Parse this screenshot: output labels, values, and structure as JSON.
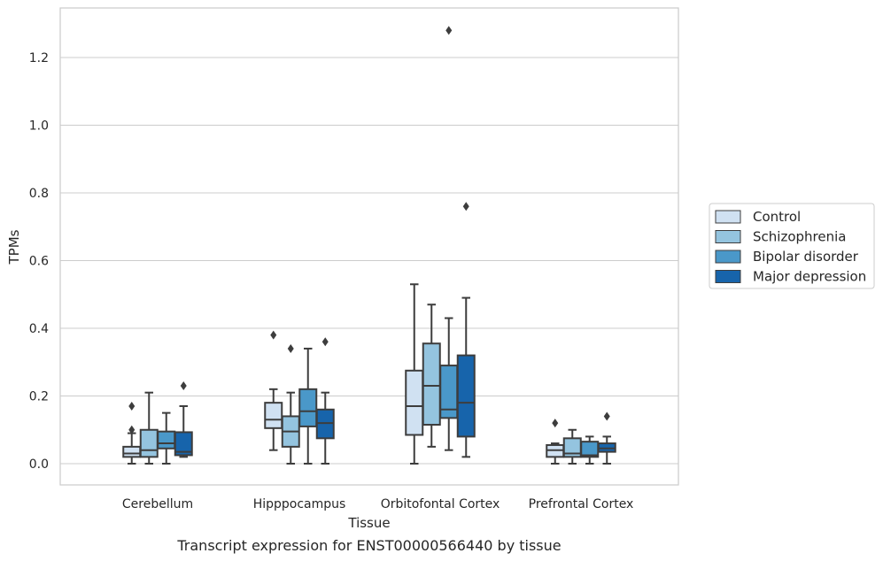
{
  "chart_data": {
    "type": "box",
    "caption": "Transcript expression for ENST00000566440 by tissue",
    "xlabel": "Tissue",
    "ylabel": "TPMs",
    "ylim": [
      -0.062,
      1.355
    ],
    "yticks": [
      0.0,
      0.2,
      0.4,
      0.6,
      0.8,
      1.0,
      1.2
    ],
    "ytick_labels": [
      "0.0",
      "0.2",
      "0.4",
      "0.6",
      "0.8",
      "1.0",
      "1.2"
    ],
    "grid": true,
    "legend_position": "right",
    "categories": [
      "Cerebellum",
      "Hipppocampus",
      "Orbitofontal Cortex",
      "Prefrontal Cortex"
    ],
    "series": [
      {
        "name": "Control",
        "color": "#d0e1f2",
        "boxes": [
          {
            "whislo": 0.0,
            "q1": 0.02,
            "med": 0.03,
            "q3": 0.05,
            "whishi": 0.09,
            "fliers": [
              0.17,
              0.1
            ]
          },
          {
            "whislo": 0.04,
            "q1": 0.105,
            "med": 0.13,
            "q3": 0.18,
            "whishi": 0.22,
            "fliers": [
              0.38
            ]
          },
          {
            "whislo": 0.0,
            "q1": 0.085,
            "med": 0.17,
            "q3": 0.275,
            "whishi": 0.53,
            "fliers": []
          },
          {
            "whislo": 0.0,
            "q1": 0.02,
            "med": 0.04,
            "q3": 0.055,
            "whishi": 0.06,
            "fliers": [
              0.12
            ]
          }
        ]
      },
      {
        "name": "Schizophrenia",
        "color": "#94c4df",
        "boxes": [
          {
            "whislo": 0.0,
            "q1": 0.02,
            "med": 0.04,
            "q3": 0.1,
            "whishi": 0.21,
            "fliers": []
          },
          {
            "whislo": 0.0,
            "q1": 0.05,
            "med": 0.095,
            "q3": 0.14,
            "whishi": 0.21,
            "fliers": [
              0.34
            ]
          },
          {
            "whislo": 0.05,
            "q1": 0.115,
            "med": 0.23,
            "q3": 0.355,
            "whishi": 0.47,
            "fliers": []
          },
          {
            "whislo": 0.0,
            "q1": 0.02,
            "med": 0.03,
            "q3": 0.075,
            "whishi": 0.1,
            "fliers": []
          }
        ]
      },
      {
        "name": "Bipolar disorder",
        "color": "#4a98c9",
        "boxes": [
          {
            "whislo": 0.0,
            "q1": 0.045,
            "med": 0.06,
            "q3": 0.095,
            "whishi": 0.15,
            "fliers": []
          },
          {
            "whislo": 0.0,
            "q1": 0.11,
            "med": 0.155,
            "q3": 0.22,
            "whishi": 0.34,
            "fliers": []
          },
          {
            "whislo": 0.04,
            "q1": 0.135,
            "med": 0.16,
            "q3": 0.29,
            "whishi": 0.43,
            "fliers": [
              1.28
            ]
          },
          {
            "whislo": 0.0,
            "q1": 0.02,
            "med": 0.025,
            "q3": 0.065,
            "whishi": 0.08,
            "fliers": []
          }
        ]
      },
      {
        "name": "Major depression",
        "color": "#1764ab",
        "boxes": [
          {
            "whislo": 0.02,
            "q1": 0.025,
            "med": 0.035,
            "q3": 0.093,
            "whishi": 0.17,
            "fliers": [
              0.23
            ]
          },
          {
            "whislo": 0.0,
            "q1": 0.075,
            "med": 0.12,
            "q3": 0.16,
            "whishi": 0.21,
            "fliers": [
              0.36
            ]
          },
          {
            "whislo": 0.02,
            "q1": 0.08,
            "med": 0.18,
            "q3": 0.32,
            "whishi": 0.49,
            "fliers": [
              0.76
            ]
          },
          {
            "whislo": 0.0,
            "q1": 0.035,
            "med": 0.045,
            "q3": 0.06,
            "whishi": 0.08,
            "fliers": [
              0.14
            ]
          }
        ]
      }
    ]
  }
}
